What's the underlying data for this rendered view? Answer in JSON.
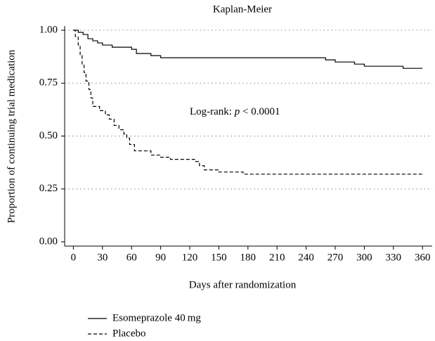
{
  "chart_data": {
    "type": "step",
    "title": "Kaplan-Meier",
    "xlabel": "Days after randomization",
    "ylabel": "Proportion of continuing trial medication",
    "annotation": {
      "prefix": "Log-rank:",
      "italic": "p",
      "suffix": "< 0.0001"
    },
    "xlim": [
      -9,
      370
    ],
    "ylim": [
      -0.02,
      1.02
    ],
    "xticks": [
      0,
      30,
      60,
      90,
      120,
      150,
      180,
      210,
      240,
      270,
      300,
      330,
      360
    ],
    "yticks": [
      {
        "value": 0,
        "label": "0.00"
      },
      {
        "value": 0.25,
        "label": "0.25"
      },
      {
        "value": 0.5,
        "label": "0.50"
      },
      {
        "value": 0.75,
        "label": "0.75"
      },
      {
        "value": 1,
        "label": "1.00"
      }
    ],
    "grid": true,
    "legend": "bottom-left",
    "series": [
      {
        "name": "Esomeprazole 40 mg",
        "color": "#000000",
        "dash": "solid",
        "x": [
          0,
          5,
          10,
          15,
          20,
          25,
          30,
          40,
          50,
          60,
          65,
          70,
          80,
          90,
          150,
          250,
          260,
          270,
          290,
          300,
          330,
          340,
          360
        ],
        "values": [
          1.0,
          0.99,
          0.98,
          0.96,
          0.95,
          0.94,
          0.93,
          0.92,
          0.92,
          0.91,
          0.89,
          0.89,
          0.88,
          0.87,
          0.87,
          0.87,
          0.86,
          0.85,
          0.84,
          0.83,
          0.83,
          0.82,
          0.82
        ]
      },
      {
        "name": "Placebo",
        "color": "#000000",
        "dash": "dashed",
        "x": [
          0,
          2,
          5,
          7,
          9,
          11,
          13,
          16,
          18,
          20,
          27,
          33,
          37,
          42,
          47,
          52,
          55,
          58,
          63,
          80,
          90,
          100,
          125,
          130,
          135,
          150,
          175,
          360
        ],
        "values": [
          1.0,
          0.97,
          0.93,
          0.88,
          0.84,
          0.8,
          0.76,
          0.72,
          0.68,
          0.64,
          0.62,
          0.6,
          0.58,
          0.55,
          0.53,
          0.51,
          0.49,
          0.46,
          0.43,
          0.41,
          0.4,
          0.39,
          0.38,
          0.36,
          0.34,
          0.33,
          0.32,
          0.32
        ]
      }
    ]
  }
}
